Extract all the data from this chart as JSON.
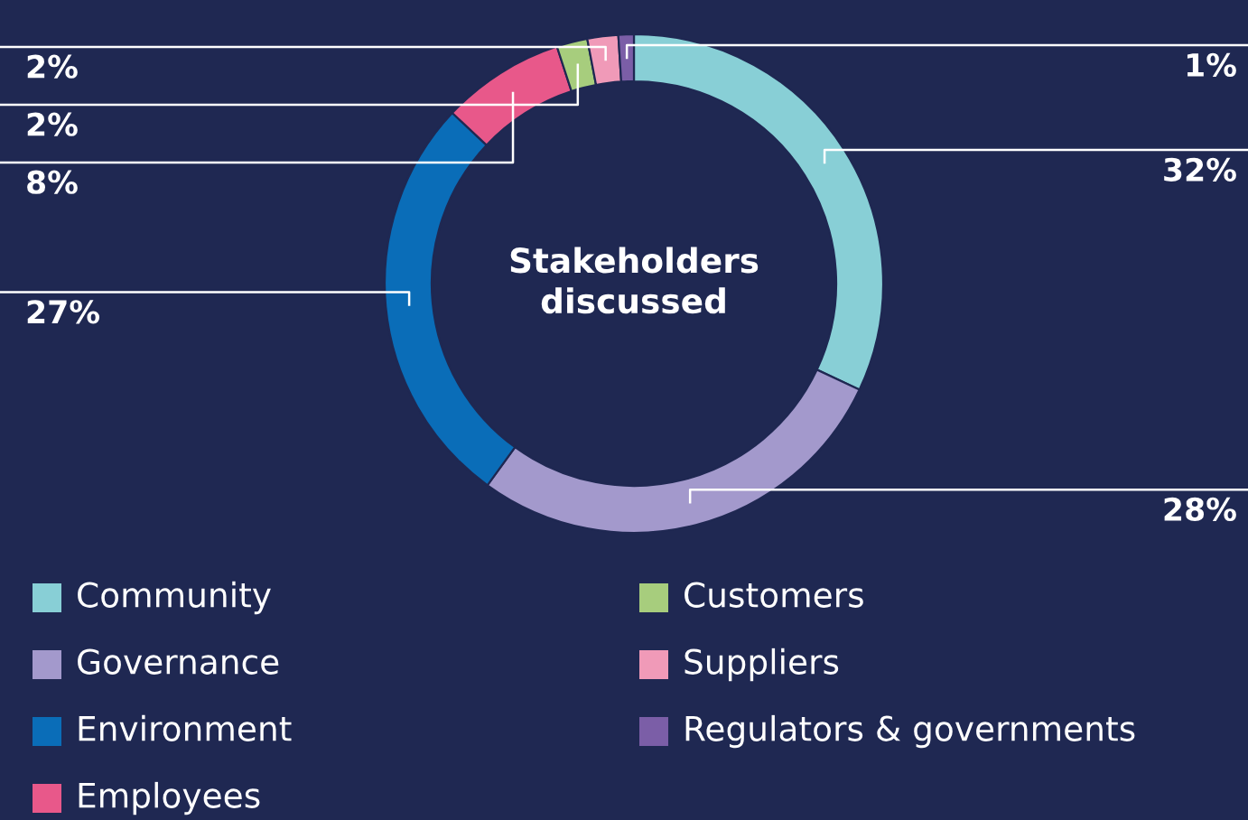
{
  "chart_data": {
    "type": "donut",
    "title": "Stakeholders\ndiscussed",
    "categories": [
      "Community",
      "Governance",
      "Environment",
      "Employees",
      "Customers",
      "Suppliers",
      "Regulators & governments"
    ],
    "values": [
      32,
      28,
      27,
      8,
      2,
      2,
      1
    ],
    "colors": [
      "#88cfd6",
      "#a399cc",
      "#0a6db8",
      "#e8588a",
      "#a7cd7d",
      "#f09ab8",
      "#7b5ea7"
    ],
    "value_labels": [
      "32%",
      "28%",
      "27%",
      "8%",
      "2%",
      "2%",
      "1%"
    ],
    "legend": "bottom"
  }
}
